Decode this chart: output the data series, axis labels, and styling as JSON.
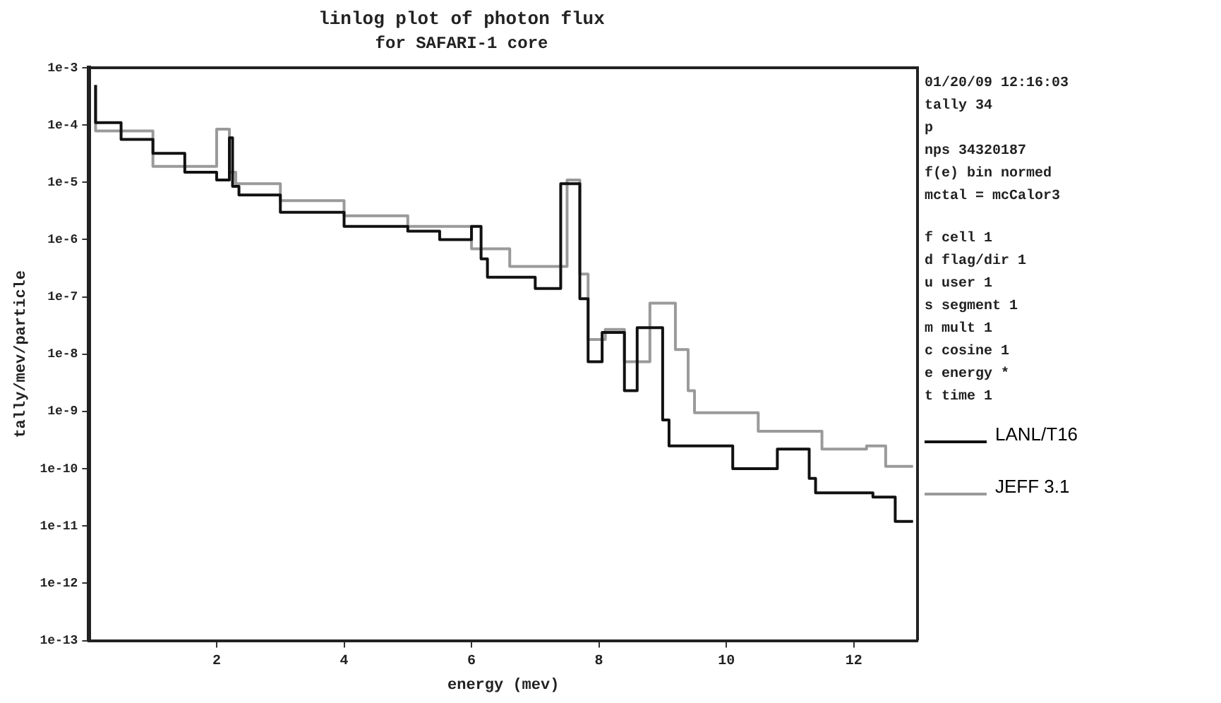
{
  "chart_data": {
    "type": "step",
    "title": "linlog plot of photon flux",
    "subtitle": "for SAFARI-1 core",
    "xlabel": "energy (mev)",
    "ylabel": "tally/mev/particle",
    "log": "y",
    "grid": false,
    "legend": "right",
    "marker": "none",
    "xlim": [
      0,
      13
    ],
    "xticks": [
      2,
      4,
      6,
      8,
      10,
      12
    ],
    "ylim": [
      1e-13,
      0.001
    ],
    "yticks": [
      {
        "value": 1e-13,
        "label": "1e-13"
      },
      {
        "value": 1e-12,
        "label": "1e-12"
      },
      {
        "value": 1e-11,
        "label": "1e-11"
      },
      {
        "value": 1e-10,
        "label": "1e-10"
      },
      {
        "value": 1e-09,
        "label": "1e-9"
      },
      {
        "value": 1e-08,
        "label": "1e-8"
      },
      {
        "value": 1e-07,
        "label": "1e-7"
      },
      {
        "value": 1e-06,
        "label": "1e-6"
      },
      {
        "value": 1e-05,
        "label": "1e-5"
      },
      {
        "value": 0.0001,
        "label": "1e-4"
      },
      {
        "value": 0.001,
        "label": "1e-3"
      }
    ],
    "annotations": [
      "01/20/09 12:16:03",
      "tally 34",
      "p",
      "nps 34320187",
      "f(e) bin normed",
      "mctal = mcCalor3",
      "f cell 1",
      "d flag/dir 1",
      "u user 1",
      "s segment 1",
      "m mult 1",
      "c cosine 1",
      "e energy *",
      "t time 1"
    ],
    "series": [
      {
        "name": "LANL/T16",
        "color": "#111111",
        "x": [
          0.1,
          0.5,
          1.0,
          1.5,
          2.0,
          2.2,
          2.25,
          2.35,
          3.0,
          4.0,
          5.0,
          5.5,
          6.0,
          6.15,
          6.25,
          6.5,
          7.0,
          7.4,
          7.7,
          7.83,
          8.05,
          8.4,
          8.6,
          9.0,
          9.1,
          10.1,
          10.8,
          11.3,
          11.4,
          11.9,
          12.3,
          12.65,
          12.93
        ],
        "values": [
          0.0005,
          0.00011,
          5.6e-05,
          3.2e-05,
          1.5e-05,
          1.1e-05,
          6e-05,
          8.5e-06,
          6e-06,
          3e-06,
          1.7e-06,
          1.4e-06,
          1e-06,
          1.7e-06,
          4.6e-07,
          2.2e-07,
          2.2e-07,
          1.4e-07,
          9.5e-06,
          9.3e-08,
          7.4e-09,
          2.4e-08,
          2.3e-09,
          2.9e-08,
          7.1e-10,
          2.5e-10,
          1e-10,
          2.2e-10,
          6.8e-11,
          3.8e-11,
          3.8e-11,
          3.2e-11,
          1.2e-11
        ]
      },
      {
        "name": "JEFF 3.1",
        "color": "#9a9a9a",
        "x": [
          0.1,
          1.0,
          2.0,
          2.2,
          2.3,
          3.0,
          4.0,
          5.0,
          6.0,
          6.6,
          7.5,
          7.7,
          7.83,
          8.1,
          8.4,
          8.8,
          9.2,
          9.4,
          9.5,
          10.5,
          11.5,
          12.2,
          12.5,
          12.93
        ],
        "values": [
          0.0005,
          7.9e-05,
          1.9e-05,
          8.5e-05,
          1.5e-05,
          9.5e-06,
          4.8e-06,
          2.6e-06,
          1.7e-06,
          6.9e-07,
          3.4e-07,
          1.1e-05,
          2.5e-07,
          1.8e-08,
          2.7e-08,
          7.4e-09,
          7.8e-08,
          1.2e-08,
          2.3e-09,
          9.5e-10,
          4.5e-10,
          2.2e-10,
          2.5e-10,
          1.1e-10
        ]
      }
    ]
  }
}
